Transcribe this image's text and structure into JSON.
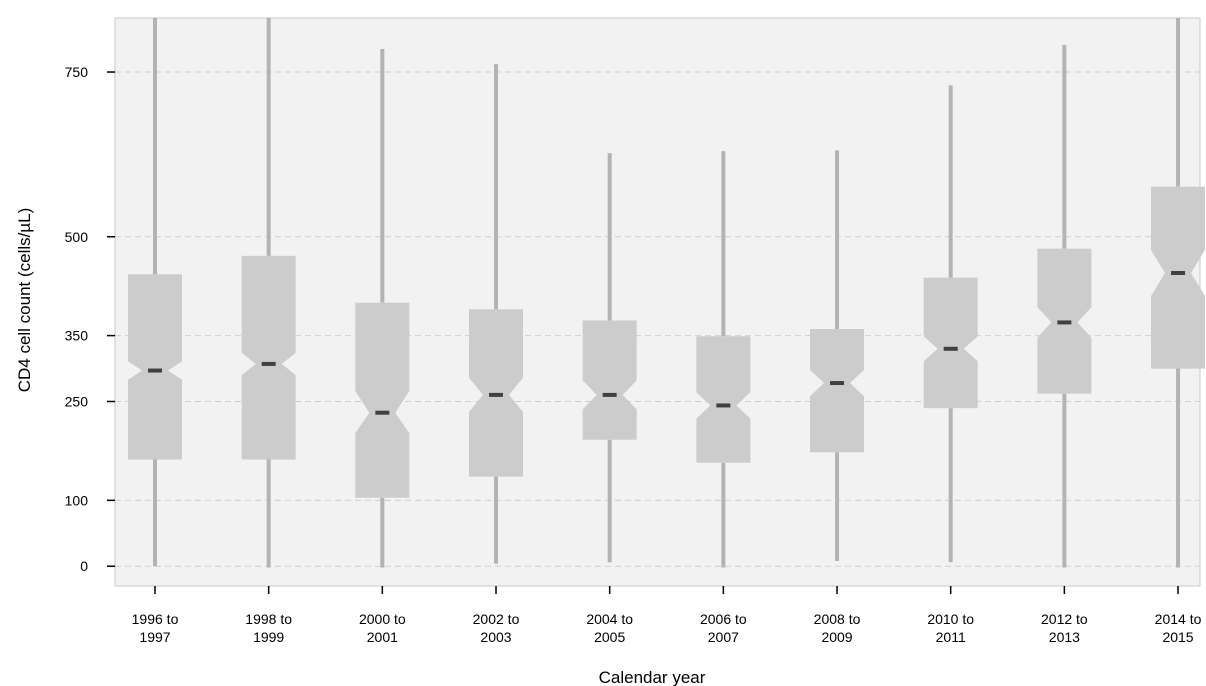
{
  "chart_data": {
    "type": "boxplot",
    "title": "",
    "xlabel": "Calendar year",
    "ylabel": "CD4 cell count (cells/µL)",
    "y_ticks": [
      0,
      100,
      250,
      350,
      500,
      750
    ],
    "y_tick_labels": [
      "0",
      "100",
      "250",
      "350",
      "500",
      "750"
    ],
    "ylim": [
      -30,
      832
    ],
    "grid": "horizontal-dashed",
    "categories": [
      [
        "1996 to",
        "1997"
      ],
      [
        "1998 to",
        "1999"
      ],
      [
        "2000 to",
        "2001"
      ],
      [
        "2002 to",
        "2003"
      ],
      [
        "2004 to",
        "2005"
      ],
      [
        "2006 to",
        "2007"
      ],
      [
        "2008 to",
        "2009"
      ],
      [
        "2010 to",
        "2011"
      ],
      [
        "2012 to",
        "2013"
      ],
      [
        "2014 to",
        "2015"
      ]
    ],
    "boxes": [
      {
        "min": 0,
        "q1": 162,
        "median": 297,
        "q3": 443,
        "max": 832,
        "notch_low": 283,
        "notch_high": 311
      },
      {
        "min": -2,
        "q1": 162,
        "median": 307,
        "q3": 471,
        "max": 832,
        "notch_low": 290,
        "notch_high": 324
      },
      {
        "min": -2,
        "q1": 104,
        "median": 233,
        "q3": 400,
        "max": 785,
        "notch_low": 202,
        "notch_high": 266
      },
      {
        "min": 4,
        "q1": 136,
        "median": 260,
        "q3": 390,
        "max": 762,
        "notch_low": 234,
        "notch_high": 286
      },
      {
        "min": 6,
        "q1": 192,
        "median": 260,
        "q3": 373,
        "max": 627,
        "notch_low": 238,
        "notch_high": 282
      },
      {
        "min": -2,
        "q1": 157,
        "median": 244,
        "q3": 349,
        "max": 630,
        "notch_low": 224,
        "notch_high": 264
      },
      {
        "min": 8,
        "q1": 173,
        "median": 278,
        "q3": 360,
        "max": 631,
        "notch_low": 258,
        "notch_high": 298
      },
      {
        "min": 6,
        "q1": 240,
        "median": 330,
        "q3": 438,
        "max": 730,
        "notch_low": 311,
        "notch_high": 349
      },
      {
        "min": -2,
        "q1": 262,
        "median": 370,
        "q3": 482,
        "max": 791,
        "notch_low": 347,
        "notch_high": 393
      },
      {
        "min": -2,
        "q1": 300,
        "median": 445,
        "q3": 576,
        "max": 832,
        "notch_low": 410,
        "notch_high": 480
      }
    ]
  }
}
